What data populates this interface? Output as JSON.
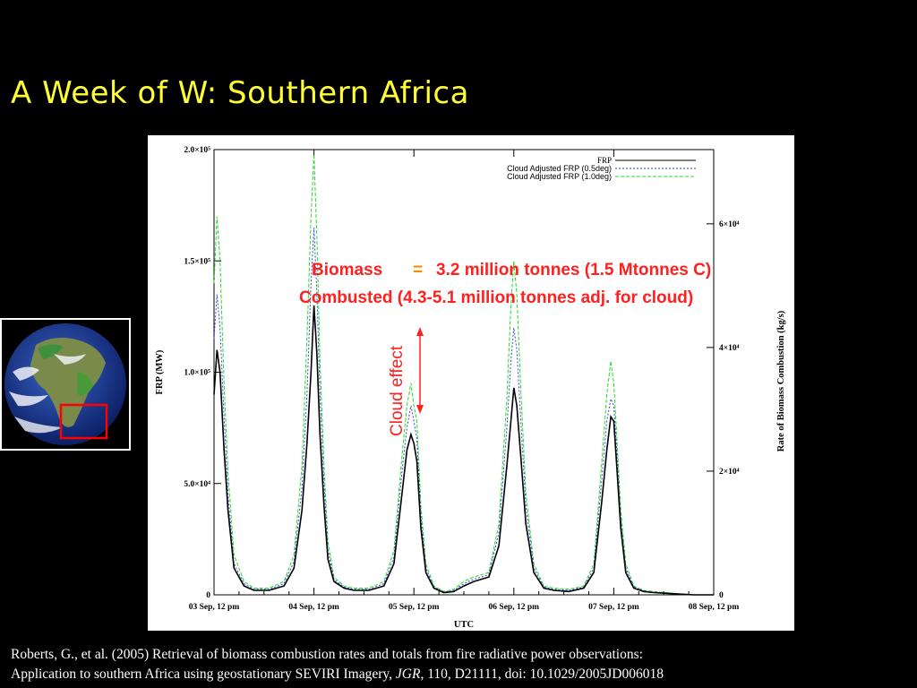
{
  "slide": {
    "title": "A Week of W: Southern Africa",
    "citation_line1": "Roberts, G., et al.  (2005) Retrieval of biomass combustion rates and totals from fire radiative power observations:",
    "citation_line2_pre": "Application to southern Africa using geostationary SEVIRI Imagery, ",
    "citation_journal": "JGR",
    "citation_line2_post": ", 110, D21111, doi: 10.1029/2005JD006018"
  },
  "colors": {
    "title": "#ffff33",
    "annotation": "#ff2020",
    "frp": "#000000",
    "adj05": "#3344dd",
    "adj10": "#22dd22",
    "inset_box": "#ff0000"
  },
  "globe": {
    "icon": "earth-globe-icon"
  },
  "annotations": {
    "biomass_label": "Biomass",
    "equals": "=",
    "line1_value": "3.2 million tonnes (1.5 Mtonnes C)",
    "line2": "Combusted (4.3-5.1 million tonnes adj. for cloud)",
    "cloud_effect": "Cloud effect"
  },
  "chart_data": {
    "type": "line",
    "xlabel": "UTC",
    "ylabel": "FRP (MW)",
    "y2label": "Rate of Biomass Combustion (kg/s)",
    "x_ticks": [
      "03 Sep, 12 pm",
      "04 Sep, 12 pm",
      "05 Sep, 12 pm",
      "06 Sep, 12 pm",
      "07 Sep, 12 pm",
      "08 Sep, 12 pm"
    ],
    "y_ticks": [
      "0",
      "5.0×10⁴",
      "1.0×10⁵",
      "1.5×10⁵",
      "2.0×10⁵"
    ],
    "y_tick_values": [
      0,
      50000,
      100000,
      150000,
      200000
    ],
    "y2_ticks": [
      "0",
      "2×10⁴",
      "4×10⁴",
      "6×10⁴"
    ],
    "y2_tick_values": [
      0,
      20000,
      40000,
      60000
    ],
    "xlim": [
      0,
      5
    ],
    "ylim": [
      0,
      200000
    ],
    "y2lim": [
      0,
      72000
    ],
    "legend_position": "top-right",
    "x_unit": "days after 03 Sep, 12 pm",
    "series": [
      {
        "name": "FRP",
        "x": [
          0,
          0.03,
          0.06,
          0.1,
          0.14,
          0.2,
          0.3,
          0.4,
          0.55,
          0.7,
          0.8,
          0.88,
          0.93,
          0.97,
          1.0,
          1.03,
          1.06,
          1.1,
          1.14,
          1.2,
          1.3,
          1.4,
          1.55,
          1.7,
          1.8,
          1.88,
          1.93,
          1.97,
          2.0,
          2.03,
          2.07,
          2.12,
          2.2,
          2.3,
          2.4,
          2.5,
          2.6,
          2.75,
          2.85,
          2.93,
          2.97,
          3.0,
          3.03,
          3.07,
          3.12,
          3.2,
          3.3,
          3.4,
          3.55,
          3.7,
          3.8,
          3.88,
          3.93,
          3.97,
          4.0,
          4.03,
          4.07,
          4.12,
          4.2,
          4.3,
          4.4,
          4.6,
          4.8,
          5.0
        ],
        "y": [
          90000,
          110000,
          100000,
          65000,
          38000,
          12000,
          4000,
          2000,
          2000,
          4000,
          12000,
          38000,
          68000,
          100000,
          130000,
          108000,
          72000,
          40000,
          16000,
          6000,
          3000,
          2000,
          2000,
          4000,
          14000,
          45000,
          65000,
          72000,
          68000,
          60000,
          30000,
          10000,
          3000,
          1000,
          1500,
          4000,
          6000,
          8000,
          22000,
          58000,
          78000,
          93000,
          85000,
          62000,
          32000,
          10000,
          3000,
          2000,
          1500,
          3000,
          10000,
          42000,
          65000,
          80000,
          78000,
          58000,
          30000,
          10000,
          3000,
          1500,
          1000,
          500,
          0,
          0
        ]
      },
      {
        "name": "Cloud Adjusted FRP (0.5deg)",
        "x": [
          0,
          0.03,
          0.06,
          0.1,
          0.14,
          0.2,
          0.3,
          0.4,
          0.55,
          0.7,
          0.8,
          0.88,
          0.93,
          0.97,
          1.0,
          1.03,
          1.06,
          1.1,
          1.14,
          1.2,
          1.3,
          1.4,
          1.55,
          1.7,
          1.8,
          1.88,
          1.93,
          1.97,
          2.0,
          2.03,
          2.07,
          2.12,
          2.2,
          2.3,
          2.4,
          2.5,
          2.6,
          2.75,
          2.85,
          2.93,
          2.97,
          3.0,
          3.03,
          3.07,
          3.12,
          3.2,
          3.3,
          3.4,
          3.55,
          3.7,
          3.8,
          3.88,
          3.93,
          3.97,
          4.0,
          4.03,
          4.07,
          4.12,
          4.2,
          4.3,
          4.4,
          4.6,
          4.8,
          5.0
        ],
        "y": [
          115000,
          135000,
          120000,
          80000,
          45000,
          14000,
          5000,
          2500,
          2500,
          5000,
          15000,
          48000,
          90000,
          140000,
          165000,
          135000,
          90000,
          50000,
          20000,
          7000,
          3500,
          2500,
          2500,
          5000,
          17000,
          55000,
          75000,
          85000,
          78000,
          70000,
          35000,
          12000,
          3500,
          1200,
          2000,
          5000,
          7000,
          9000,
          28000,
          75000,
          105000,
          120000,
          110000,
          78000,
          40000,
          12000,
          3500,
          2500,
          2000,
          3500,
          12000,
          52000,
          78000,
          88000,
          85000,
          65000,
          34000,
          12000,
          3500,
          1800,
          1200,
          600,
          0,
          0
        ]
      },
      {
        "name": "Cloud Adjusted FRP (1.0deg)",
        "x": [
          0,
          0.03,
          0.06,
          0.1,
          0.14,
          0.2,
          0.3,
          0.4,
          0.55,
          0.7,
          0.8,
          0.88,
          0.93,
          0.97,
          1.0,
          1.03,
          1.06,
          1.1,
          1.14,
          1.2,
          1.3,
          1.4,
          1.55,
          1.7,
          1.8,
          1.88,
          1.93,
          1.97,
          2.0,
          2.03,
          2.07,
          2.12,
          2.2,
          2.3,
          2.4,
          2.5,
          2.6,
          2.75,
          2.85,
          2.93,
          2.97,
          3.0,
          3.03,
          3.07,
          3.12,
          3.2,
          3.3,
          3.4,
          3.55,
          3.7,
          3.8,
          3.88,
          3.93,
          3.97,
          4.0,
          4.03,
          4.07,
          4.12,
          4.2,
          4.3,
          4.4,
          4.6,
          4.8,
          5.0
        ],
        "y": [
          140000,
          170000,
          150000,
          95000,
          55000,
          18000,
          6000,
          3000,
          3000,
          6000,
          18000,
          58000,
          115000,
          170000,
          198000,
          160000,
          105000,
          58000,
          24000,
          8000,
          4000,
          3000,
          3000,
          6000,
          20000,
          62000,
          85000,
          95000,
          85000,
          78000,
          40000,
          14000,
          4000,
          1500,
          2500,
          6000,
          8000,
          10000,
          32000,
          88000,
          130000,
          150000,
          135000,
          92000,
          46000,
          14000,
          4000,
          3000,
          2500,
          4000,
          14000,
          60000,
          90000,
          105000,
          95000,
          72000,
          38000,
          14000,
          4000,
          2000,
          1500,
          700,
          0,
          0
        ]
      }
    ]
  }
}
